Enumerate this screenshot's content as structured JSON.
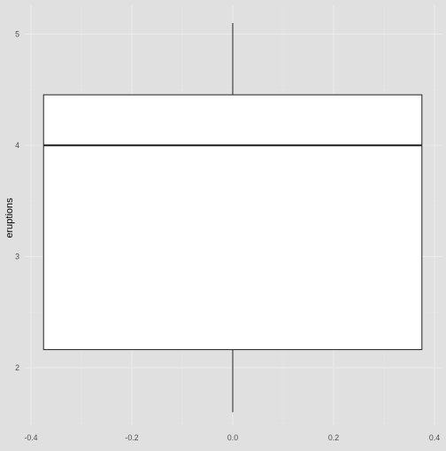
{
  "chart_data": {
    "type": "box",
    "title": "",
    "xlabel": "",
    "ylabel": "eruptions",
    "x_ticks": [
      -0.4,
      -0.2,
      0.0,
      0.2,
      0.4
    ],
    "x_tick_labels": [
      "-0.4",
      "-0.2",
      "0.0",
      "0.2",
      "0.4"
    ],
    "y_ticks": [
      2,
      3,
      4,
      5
    ],
    "y_tick_labels": [
      "2",
      "3",
      "4",
      "5"
    ],
    "xlim": [
      -0.4,
      0.4
    ],
    "ylim": [
      1.5,
      5.2
    ],
    "grid": true,
    "legend": "none",
    "box": {
      "x_center": 0.0,
      "x_left": -0.375,
      "x_right": 0.375,
      "min": 1.6,
      "q1": 2.163,
      "median": 4.0,
      "q3": 4.454,
      "max": 5.1
    },
    "colors": {
      "panel_background": "#e0e0e0",
      "grid_major": "#ebebeb",
      "grid_minor": "#e5e5e5",
      "box_fill": "#ffffff",
      "box_stroke": "#333333",
      "median_stroke": "#333333",
      "tick_text": "#4d4d4d",
      "axis_title": "#000000"
    }
  }
}
